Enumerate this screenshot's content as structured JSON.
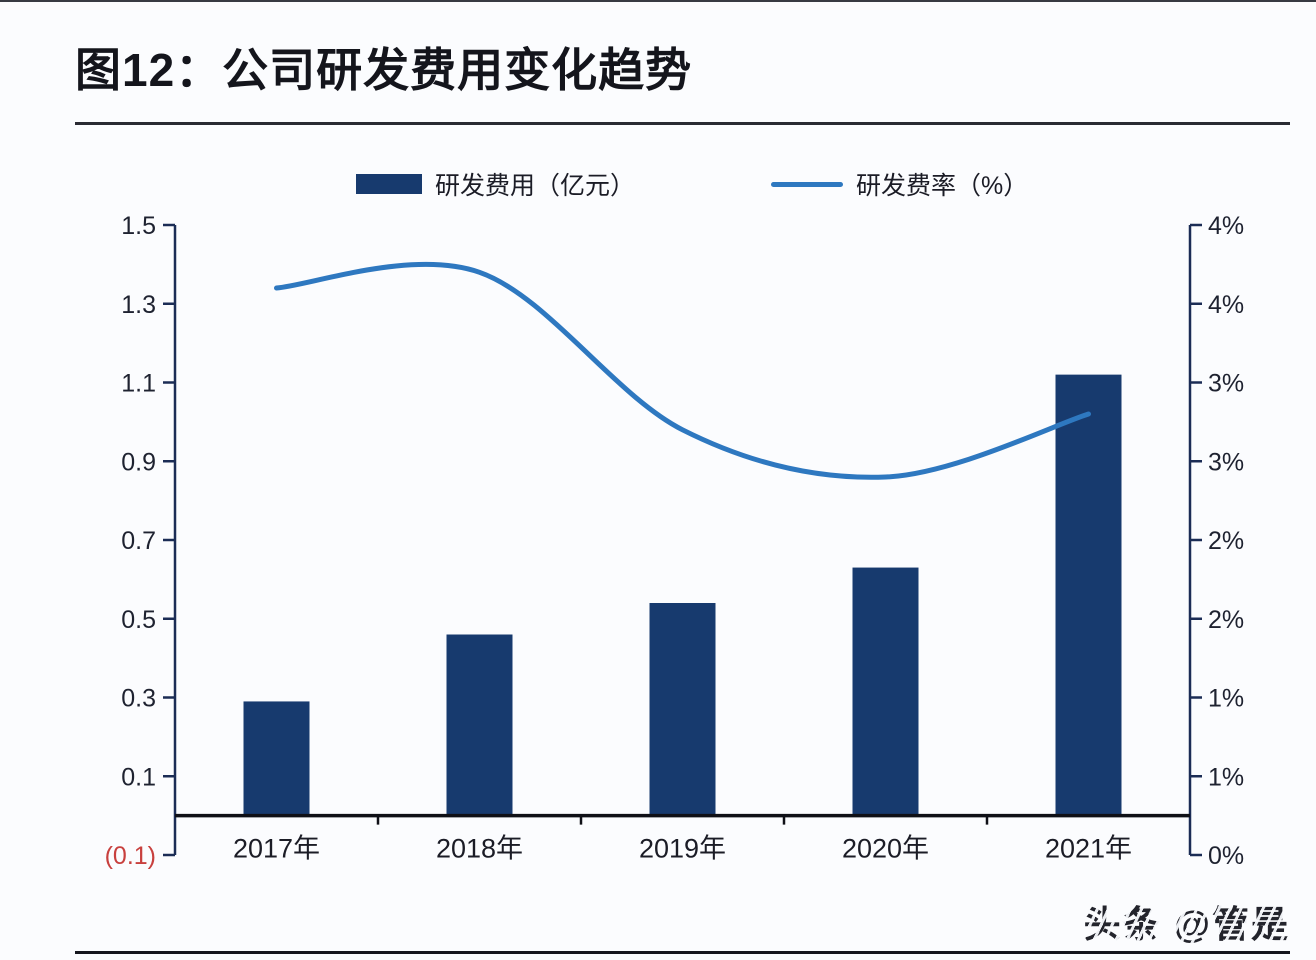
{
  "page": {
    "title": "图12：公司研发费用变化趋势",
    "watermark": "头条 @管是"
  },
  "legend": [
    {
      "label": "研发费用（亿元）",
      "type": "bar",
      "color": "#173a6e"
    },
    {
      "label": "研发费率（%）",
      "type": "line",
      "color": "#2e78c0"
    }
  ],
  "chart_data": {
    "type": "bar+line combo",
    "title": "图12：公司研发费用变化趋势",
    "categories": [
      "2017年",
      "2018年",
      "2019年",
      "2020年",
      "2021年"
    ],
    "series": [
      {
        "name": "研发费用（亿元）",
        "type": "bar",
        "axis": "left",
        "values": [
          0.29,
          0.46,
          0.54,
          0.63,
          1.12
        ],
        "color": "#173a6e"
      },
      {
        "name": "研发费率（%）",
        "type": "line",
        "axis": "right",
        "values": [
          3.6,
          3.7,
          2.7,
          2.4,
          2.8
        ],
        "color": "#2e78c0"
      }
    ],
    "left_axis": {
      "min": -0.1,
      "max": 1.5,
      "tick_step": 0.2,
      "labels": [
        "1.5",
        "1.3",
        "1.1",
        "0.9",
        "0.7",
        "0.5",
        "0.3",
        "0.1",
        "(0.1)"
      ],
      "label_color": "#1e2230",
      "negative_label_color": "#c8403e"
    },
    "right_axis": {
      "min": 0,
      "max": 4,
      "tick_step": 0.5,
      "labels": [
        "4%",
        "4%",
        "3%",
        "3%",
        "2%",
        "2%",
        "1%",
        "1%",
        "0%"
      ],
      "label_color": "#1e2230"
    },
    "grid": false,
    "legend_position": "top",
    "axis_line_color": "#1b2c55",
    "x_axis_line_color": "#0f1016"
  }
}
